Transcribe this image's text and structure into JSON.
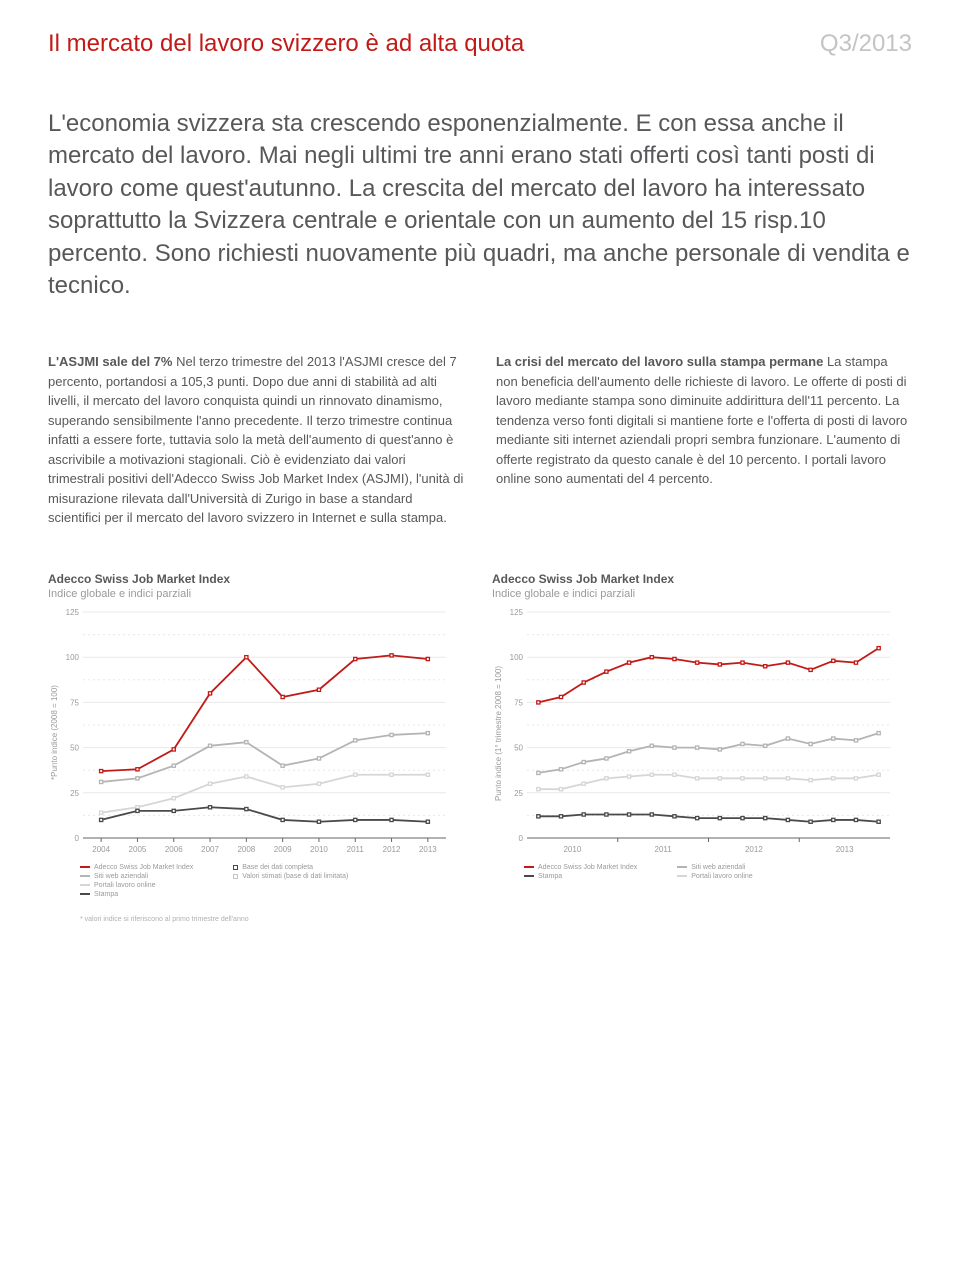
{
  "header": {
    "title": "Il mercato del lavoro svizzero è ad alta quota",
    "date": "Q3/2013"
  },
  "intro": "L'economia svizzera sta crescendo esponenzialmente. E con essa anche il mercato del lavoro. Mai negli ultimi tre anni erano stati offerti così tanti posti di lavoro come quest'autunno. La crescita del mercato del lavoro ha interessato soprattutto la Svizzera centrale e orientale con un aumento del 15 risp.10 percento. Sono richiesti nuovamente più quadri, ma anche personale di vendita e tecnico.",
  "leftCol": {
    "subhead": "L'ASJMI sale del 7%",
    "body": "Nel terzo trimestre del 2013 l'ASJMI cresce del 7 percento, portandosi a 105,3 punti. Dopo due anni di stabilità ad alti livelli, il mercato del lavoro conquista quindi un rinnovato dinamismo, superando sensibilmente l'anno precedente. Il terzo trimestre continua infatti a essere forte, tuttavia solo la metà dell'aumento di quest'anno è ascrivibile a motivazioni stagionali. Ciò è evidenziato dai valori trimestrali positivi dell'Adecco Swiss Job Market Index (ASJMI), l'unità di misurazione rilevata dall'Università di Zurigo in base a standard scientifici per il mercato del lavoro svizzero in Internet e sulla stampa."
  },
  "rightCol": {
    "subhead": "La crisi del mercato del lavoro sulla stampa permane",
    "body": "La stampa non beneficia dell'aumento delle richieste di lavoro. Le offerte di posti di lavoro mediante stampa sono diminuite addirittura dell'11 percento. La tendenza verso fonti digitali si mantiene forte e l'offerta di posti di lavoro mediante siti internet aziendali propri sembra funzionare. L'aumento di offerte registrato da questo canale è del 10 percento. I portali lavoro online sono aumentati del 4 percento."
  },
  "chart1": {
    "title": "Adecco Swiss Job Market Index",
    "subtitle": "Indice globale e indici parziali",
    "ylabel": "*Punto indice (2008 = 100)",
    "ylim": [
      0,
      125
    ],
    "ytick_step": 25,
    "xlabels": [
      "2004",
      "2005",
      "2006",
      "2007",
      "2008",
      "2009",
      "2010",
      "2011",
      "2012",
      "2013"
    ],
    "type": "line",
    "background_color": "#ffffff",
    "grid_color": "#e8e8e8",
    "axis_color": "#666666",
    "tick_font_size": 8,
    "tick_color": "#9a9a9a",
    "line_width": 1.8,
    "marker_size": 3.2,
    "marker_style": "square",
    "series": [
      {
        "name": "Adecco Swiss Job Market Index",
        "color": "#c21b17",
        "values": [
          37,
          38,
          49,
          80,
          100,
          78,
          82,
          99,
          101,
          99
        ]
      },
      {
        "name": "Siti web aziendali",
        "color": "#b4b4b4",
        "values": [
          31,
          33,
          40,
          51,
          53,
          40,
          44,
          54,
          57,
          58
        ]
      },
      {
        "name": "Portali lavoro online",
        "color": "#d6d6d6",
        "values": [
          14,
          17,
          22,
          30,
          34,
          28,
          30,
          35,
          35,
          35
        ]
      },
      {
        "name": "Stampa",
        "color": "#4a4a4a",
        "values": [
          10,
          15,
          15,
          17,
          16,
          10,
          9,
          10,
          10,
          9
        ]
      }
    ],
    "legendLeft": [
      {
        "label": "Adecco Swiss Job Market Index",
        "color": "#c21b17",
        "type": "line"
      },
      {
        "label": "Siti web aziendali",
        "color": "#b4b4b4",
        "type": "line"
      },
      {
        "label": "Portali lavoro online",
        "color": "#d6d6d6",
        "type": "line"
      },
      {
        "label": "Stampa",
        "color": "#4a4a4a",
        "type": "line"
      }
    ],
    "legendRight": [
      {
        "label": "Base dei dati completa",
        "color": "#4a4a4a",
        "type": "box"
      },
      {
        "label": "Valori stimati (base di dati limitata)",
        "color": "#c4c4c4",
        "type": "box"
      }
    ],
    "footnote": "* valori indice si riferiscono al primo trimestre dell'anno"
  },
  "chart2": {
    "title": "Adecco Swiss Job Market Index",
    "subtitle": "Indice globale e indici parziali",
    "ylabel": "Punto indice (1° trimestre 2008 = 100)",
    "ylim": [
      0,
      125
    ],
    "ytick_step": 25,
    "xlabels": [
      "2010",
      "2011",
      "2012",
      "2013"
    ],
    "type": "line",
    "background_color": "#ffffff",
    "grid_color": "#e8e8e8",
    "axis_color": "#666666",
    "tick_font_size": 8,
    "tick_color": "#9a9a9a",
    "line_width": 1.8,
    "marker_size": 3.2,
    "marker_style": "square",
    "series": [
      {
        "name": "Adecco Swiss Job Market Index",
        "color": "#c21b17",
        "values": [
          75,
          78,
          86,
          92,
          97,
          100,
          99,
          97,
          96,
          97,
          95,
          97,
          93,
          98,
          97,
          105
        ]
      },
      {
        "name": "Stampa",
        "color": "#4a4a4a",
        "values": [
          12,
          12,
          13,
          13,
          13,
          13,
          12,
          11,
          11,
          11,
          11,
          10,
          9,
          10,
          10,
          9
        ]
      },
      {
        "name": "Siti web aziendali",
        "color": "#b4b4b4",
        "values": [
          36,
          38,
          42,
          44,
          48,
          51,
          50,
          50,
          49,
          52,
          51,
          55,
          52,
          55,
          54,
          58
        ]
      },
      {
        "name": "Portali lavoro online",
        "color": "#d6d6d6",
        "values": [
          27,
          27,
          30,
          33,
          34,
          35,
          35,
          33,
          33,
          33,
          33,
          33,
          32,
          33,
          33,
          35
        ]
      }
    ],
    "legendLeft": [
      {
        "label": "Adecco Swiss Job Market Index",
        "color": "#c21b17",
        "type": "line"
      },
      {
        "label": "Stampa",
        "color": "#4a4a4a",
        "type": "line"
      }
    ],
    "legendRight": [
      {
        "label": "Siti web aziendali",
        "color": "#b4b4b4",
        "type": "line"
      },
      {
        "label": "Portali lavoro online",
        "color": "#d6d6d6",
        "type": "line"
      }
    ]
  }
}
